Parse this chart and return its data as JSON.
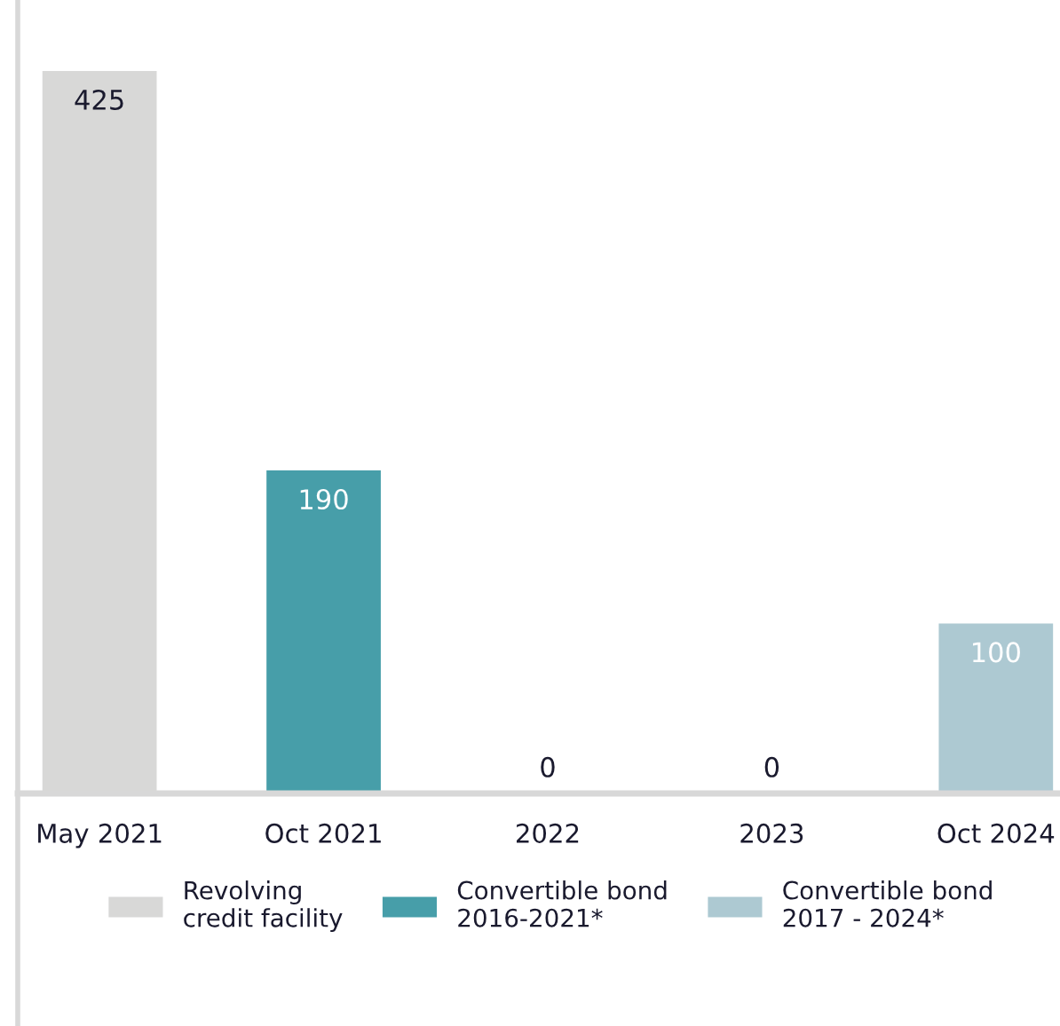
{
  "chart_data": {
    "type": "bar",
    "categories": [
      "May 2021",
      "Oct 2021",
      "2022",
      "2023",
      "Oct 2024"
    ],
    "series": [
      {
        "name": "Revolving\ncredit facility",
        "color": "#d8d8d7",
        "values": [
          425,
          null,
          null,
          null,
          null
        ]
      },
      {
        "name": "Convertible bond\n2016-2021*",
        "color": "#479ea9",
        "values": [
          null,
          190,
          0,
          null,
          null
        ]
      },
      {
        "name": "Convertible bond\n2017 - 2024*",
        "color": "#adc9d2",
        "values": [
          null,
          null,
          null,
          0,
          100
        ]
      }
    ],
    "data_labels": true,
    "legend": "bottom",
    "grid": false
  }
}
